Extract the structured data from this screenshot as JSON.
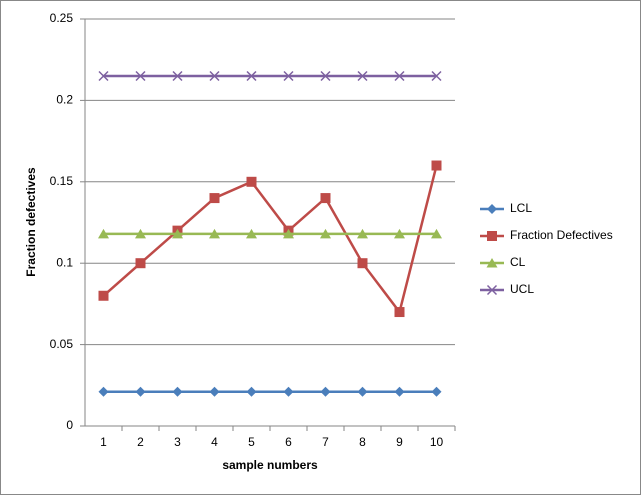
{
  "chart_data": {
    "type": "line",
    "y_label": "Fraction defectives",
    "x_label": "sample numbers",
    "categories": [
      "1",
      "2",
      "3",
      "4",
      "5",
      "6",
      "7",
      "8",
      "9",
      "10"
    ],
    "series": [
      {
        "name": "LCL",
        "color": "#4a7ebb",
        "marker": "diamond",
        "values": [
          0.021,
          0.021,
          0.021,
          0.021,
          0.021,
          0.021,
          0.021,
          0.021,
          0.021,
          0.021
        ]
      },
      {
        "name": "Fraction Defectives",
        "color": "#be4b48",
        "marker": "square",
        "values": [
          0.08,
          0.1,
          0.12,
          0.14,
          0.15,
          0.12,
          0.14,
          0.1,
          0.07,
          0.16
        ]
      },
      {
        "name": "CL",
        "color": "#98b954",
        "marker": "triangle",
        "values": [
          0.118,
          0.118,
          0.118,
          0.118,
          0.118,
          0.118,
          0.118,
          0.118,
          0.118,
          0.118
        ]
      },
      {
        "name": "UCL",
        "color": "#7d60a0",
        "marker": "x",
        "values": [
          0.215,
          0.215,
          0.215,
          0.215,
          0.215,
          0.215,
          0.215,
          0.215,
          0.215,
          0.215
        ]
      }
    ],
    "ylim": [
      0,
      0.25
    ],
    "yticks": [
      0,
      0.05,
      0.1,
      0.15,
      0.2,
      0.25
    ],
    "grid": true,
    "legend": "right"
  }
}
